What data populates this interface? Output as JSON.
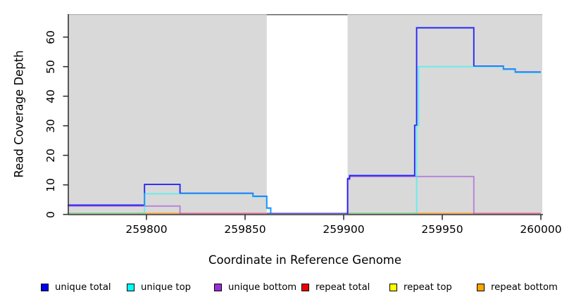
{
  "chart_data": {
    "type": "line",
    "subtype": "step-coverage",
    "title": "",
    "xlabel": "Coordinate in Reference Genome",
    "ylabel": "Read Coverage Depth",
    "xlim": [
      259760,
      260000
    ],
    "ylim": [
      0,
      68
    ],
    "x_ticks": [
      "259800",
      "259850",
      "259900",
      "259950",
      "260000"
    ],
    "x_tick_values": [
      259800,
      259850,
      259900,
      259950,
      260000
    ],
    "y_ticks": [
      "0",
      "10",
      "20",
      "30",
      "40",
      "50",
      "60"
    ],
    "y_tick_values": [
      0,
      10,
      20,
      30,
      40,
      50,
      60
    ],
    "grid": false,
    "legend_position": "bottom",
    "plot_fill": "#d9d9d9",
    "masked_region": {
      "from": 259861,
      "to": 259902,
      "fill": "#ffffff",
      "border_color": "#6f6f6f"
    },
    "x_end": 260000,
    "series": [
      {
        "name": "unique total",
        "legend_color": "#0000f0",
        "plot_color": "#0000ff",
        "plot_opacity": 0.82,
        "steps": [
          [
            259760,
            3
          ],
          [
            259799,
            10
          ],
          [
            259817,
            7
          ],
          [
            259854,
            6
          ],
          [
            259861,
            2
          ],
          [
            259863,
            0
          ],
          [
            259902,
            12
          ],
          [
            259903,
            13
          ],
          [
            259936,
            30
          ],
          [
            259937,
            63
          ],
          [
            259966,
            50
          ],
          [
            259981,
            49
          ],
          [
            259987,
            48
          ]
        ]
      },
      {
        "name": "unique top",
        "legend_color": "#00ffff",
        "plot_color": "#00ffff",
        "plot_opacity": 0.55,
        "steps": [
          [
            259760,
            0
          ],
          [
            259799,
            7
          ],
          [
            259854,
            6
          ],
          [
            259861,
            2
          ],
          [
            259863,
            0
          ],
          [
            259937,
            30
          ],
          [
            259938,
            50
          ],
          [
            259981,
            49
          ],
          [
            259987,
            48
          ]
        ]
      },
      {
        "name": "unique bottom",
        "legend_color": "#9a2fd6",
        "plot_color": "#9a2fd6",
        "plot_opacity": 0.52,
        "steps": [
          [
            259760,
            3
          ],
          [
            259817,
            0
          ],
          [
            259902,
            12
          ],
          [
            259903,
            13
          ],
          [
            259966,
            0
          ]
        ]
      },
      {
        "name": "repeat total",
        "legend_color": "#ee0000",
        "plot_color": "#ee0000",
        "plot_opacity": 0.5,
        "steps": [
          [
            259760,
            0
          ]
        ]
      },
      {
        "name": "repeat top",
        "legend_color": "#ffff00",
        "plot_color": "#ffff00",
        "plot_opacity": 0.5,
        "steps": [
          [
            259760,
            0
          ]
        ]
      },
      {
        "name": "repeat bottom",
        "legend_color": "#ffa500",
        "plot_color": "#ffa500",
        "plot_opacity": 0.5,
        "steps": [
          [
            259760,
            0
          ]
        ]
      }
    ],
    "zero_line_segments": [
      {
        "from": 259760,
        "to": 259799,
        "color": "#7fc87f"
      },
      {
        "from": 259799,
        "to": 259817,
        "color": "#ff9b2e"
      },
      {
        "from": 259817,
        "to": 259861,
        "color": "#e26a94"
      },
      {
        "from": 259861,
        "to": 259902,
        "color": "#6659d6"
      },
      {
        "from": 259902,
        "to": 259937,
        "color": "#7fc87f"
      },
      {
        "from": 259937,
        "to": 259966,
        "color": "#ff9b2e"
      },
      {
        "from": 259966,
        "to": 260000,
        "color": "#e26a94"
      }
    ]
  }
}
